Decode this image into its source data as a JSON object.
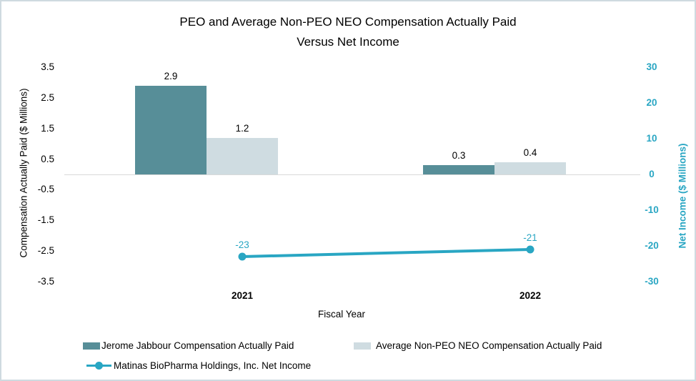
{
  "window": {
    "border_color": "#CFDAE0",
    "background_color": "#FFFFFF"
  },
  "chart_data": {
    "type": "combo-bar-line",
    "title_line1": "PEO and Average Non-PEO NEO Compensation Actually Paid",
    "title_line2": "Versus Net Income",
    "xlabel": "Fiscal Year",
    "categories": [
      "2021",
      "2022"
    ],
    "bar_series": [
      {
        "name": "Jerome Jabbour Compensation Actually Paid",
        "values": [
          2.9,
          0.3
        ],
        "labels": [
          "2.9",
          "0.3"
        ],
        "color": "#578E98",
        "axis": "left"
      },
      {
        "name": "Average Non-PEO NEO Compensation Actually Paid",
        "values": [
          1.2,
          0.4
        ],
        "labels": [
          "1.2",
          "0.4"
        ],
        "color": "#CFDCE1",
        "axis": "left"
      }
    ],
    "line_series": [
      {
        "name": "Matinas BioPharma Holdings, Inc. Net Income",
        "values": [
          -23,
          -21
        ],
        "labels": [
          "-23",
          "-21"
        ],
        "color": "#29A6C3",
        "axis": "right"
      }
    ],
    "left_axis": {
      "title": "Compensation Actually Paid ($ Millions)",
      "tick_labels": [
        "3.5",
        "2.5",
        "1.5",
        "0.5",
        "-0.5",
        "-1.5",
        "-2.5",
        "-3.5"
      ],
      "tick_values": [
        3.5,
        2.5,
        1.5,
        0.5,
        -0.5,
        -1.5,
        -2.5,
        -3.5
      ],
      "range": [
        -3.5,
        3.5
      ],
      "color": "#000000"
    },
    "right_axis": {
      "title": "Net Income ($ Millions)",
      "tick_labels": [
        "30",
        "20",
        "10",
        "0",
        "-10",
        "-20",
        "-30"
      ],
      "tick_values": [
        30,
        20,
        10,
        0,
        -10,
        -20,
        -30
      ],
      "range": [
        -30,
        30
      ],
      "color": "#29A6C3"
    },
    "gridlines": {
      "zero_line_only": true,
      "color": "#D9D9D9"
    },
    "legend": {
      "position": "bottom",
      "entries": [
        "Jerome Jabbour Compensation Actually Paid",
        "Average Non-PEO NEO Compensation Actually Paid",
        "Matinas BioPharma Holdings, Inc. Net Income"
      ]
    }
  }
}
